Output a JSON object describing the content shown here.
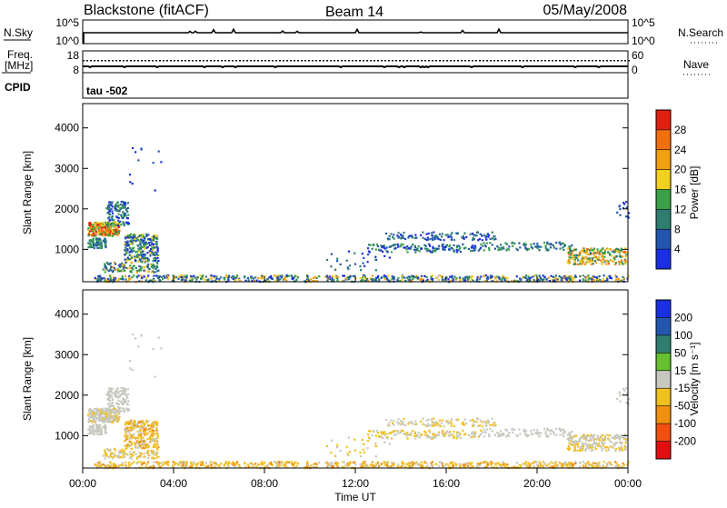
{
  "header": {
    "station": "Blackstone (fitACF)",
    "beam": "Beam 14",
    "date": "05/May/2008"
  },
  "top_panel": {
    "left_label": "N.Sky",
    "left_ticks": [
      "10^5",
      "10^0"
    ],
    "right_ticks": [
      "10^5",
      "10^0"
    ],
    "right_label": "N.Search"
  },
  "freq_panel": {
    "label_line1": "Freq.",
    "label_line2": "[MHz]",
    "left_ticks": [
      "18",
      "8"
    ],
    "right_ticks": [
      "60",
      "0"
    ],
    "right_label": "Nave"
  },
  "cpid_panel": {
    "label": "CPID",
    "value": "tau -502"
  },
  "chart_data": [
    {
      "type": "heatmap",
      "name": "power",
      "ylabel": "Slant Range [km]",
      "ylim": [
        200,
        4600
      ],
      "yticks": [
        "1000",
        "2000",
        "3000",
        "4000"
      ],
      "colorbar_label": "Power [dB]",
      "colorbar_ticks": [
        "4",
        "8",
        "12",
        "16",
        "20",
        "24",
        "28"
      ],
      "colorbar_colors": [
        "#1a2fe0",
        "#2456b0",
        "#2e7d6f",
        "#3aa04a",
        "#f0d020",
        "#f0a010",
        "#f07010",
        "#e02010"
      ]
    },
    {
      "type": "heatmap",
      "name": "velocity",
      "ylabel": "Slant Range [km]",
      "ylim": [
        200,
        4600
      ],
      "yticks": [
        "1000",
        "2000",
        "3000",
        "4000"
      ],
      "colorbar_label": "Velocity [m s⁻¹]",
      "colorbar_ticks": [
        "200",
        "100",
        "50",
        "15",
        "-15",
        "-50",
        "-100",
        "-200"
      ],
      "colorbar_colors": [
        "#1a2fe0",
        "#2456b0",
        "#2e7d6f",
        "#66c030",
        "#c8c8c0",
        "#f0c020",
        "#f09010",
        "#f05010",
        "#e01010"
      ]
    }
  ],
  "x_axis": {
    "ticks": [
      "00:00",
      "04:00",
      "08:00",
      "12:00",
      "16:00",
      "20:00",
      "00:00"
    ],
    "label": "Time UT"
  }
}
